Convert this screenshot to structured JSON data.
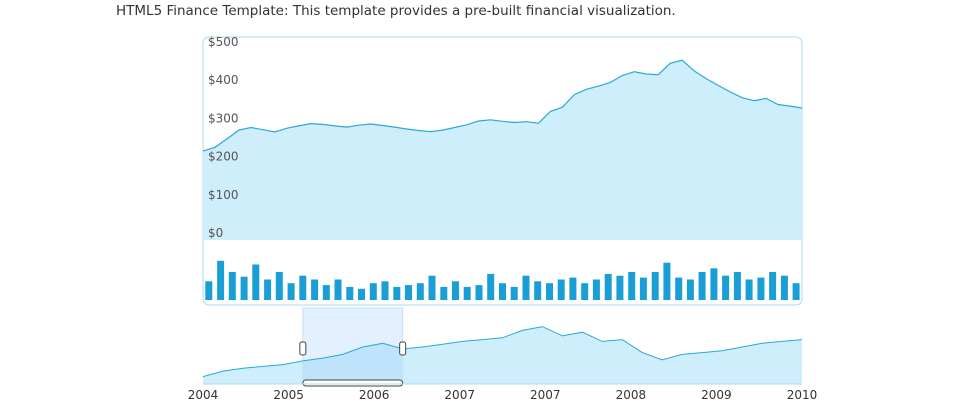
{
  "caption": "HTML5 Finance Template: This template provides a pre-built financial visualization.",
  "colors": {
    "line": "#29a9d8",
    "fill": "#cfeefb",
    "bar": "#1a9ed6",
    "border": "#a9dcef",
    "selection": "#e2f0ff",
    "selection_fill": "#bfe3fb"
  },
  "chart_data": [
    {
      "type": "area",
      "title": "",
      "xlabel": "",
      "ylabel": "",
      "ylim": [
        0,
        500
      ],
      "y_ticks": [
        "$500",
        "$400",
        "$300",
        "$200",
        "$100",
        "$0"
      ],
      "y_tick_values": [
        500,
        400,
        300,
        200,
        100,
        0
      ],
      "grid": false,
      "xlim": [
        2005.0,
        2006.0
      ],
      "note_x_unit": "year",
      "x": [
        2005.0,
        2005.02,
        2005.04,
        2005.06,
        2005.08,
        2005.1,
        2005.12,
        2005.14,
        2005.16,
        2005.18,
        2005.2,
        2005.22,
        2005.24,
        2005.26,
        2005.28,
        2005.3,
        2005.32,
        2005.34,
        2005.36,
        2005.38,
        2005.4,
        2005.42,
        2005.44,
        2005.46,
        2005.48,
        2005.5,
        2005.52,
        2005.54,
        2005.56,
        2005.58,
        2005.6,
        2005.62,
        2005.64,
        2005.66,
        2005.68,
        2005.7,
        2005.72,
        2005.74,
        2005.76,
        2005.78,
        2005.8,
        2005.82,
        2005.84,
        2005.86,
        2005.88,
        2005.9,
        2005.92,
        2005.94,
        2005.96,
        2005.98,
        2006.0
      ],
      "y": [
        230,
        240,
        262,
        285,
        292,
        286,
        280,
        290,
        296,
        302,
        300,
        296,
        293,
        298,
        301,
        297,
        293,
        288,
        284,
        281,
        285,
        292,
        299,
        309,
        312,
        308,
        305,
        307,
        303,
        334,
        345,
        378,
        392,
        400,
        410,
        428,
        438,
        432,
        430,
        460,
        468,
        440,
        420,
        402,
        385,
        370,
        362,
        368,
        352,
        348,
        343
      ]
    },
    {
      "type": "bar",
      "title": "",
      "note": "volume",
      "x": [
        2005.0,
        2005.02,
        2005.04,
        2005.06,
        2005.08,
        2005.1,
        2005.12,
        2005.14,
        2005.16,
        2005.18,
        2005.2,
        2005.22,
        2005.24,
        2005.26,
        2005.28,
        2005.3,
        2005.32,
        2005.34,
        2005.36,
        2005.38,
        2005.4,
        2005.42,
        2005.44,
        2005.46,
        2005.48,
        2005.5,
        2005.52,
        2005.54,
        2005.56,
        2005.58,
        2005.6,
        2005.62,
        2005.64,
        2005.66,
        2005.68,
        2005.7,
        2005.72,
        2005.74,
        2005.76,
        2005.78,
        2005.8,
        2005.82,
        2005.84,
        2005.86,
        2005.88,
        2005.9,
        2005.92,
        2005.94,
        2005.96,
        2005.98,
        2006.0
      ],
      "values": [
        20,
        42,
        30,
        25,
        38,
        22,
        30,
        18,
        26,
        22,
        16,
        22,
        14,
        12,
        18,
        20,
        14,
        16,
        18,
        26,
        14,
        20,
        14,
        16,
        28,
        18,
        14,
        26,
        20,
        18,
        22,
        24,
        18,
        22,
        28,
        26,
        30,
        24,
        30,
        40,
        24,
        22,
        30,
        34,
        26,
        30,
        22,
        24,
        30,
        26,
        18
      ],
      "ylim": [
        0,
        60
      ]
    },
    {
      "type": "area",
      "title": "",
      "note": "navigator",
      "x_ticks": [
        "2004",
        "2005",
        "2006",
        "2007",
        "2007",
        "2008",
        "2009",
        "2010"
      ],
      "x": [
        2004.0,
        2004.2,
        2004.4,
        2004.6,
        2004.8,
        2005.0,
        2005.2,
        2005.4,
        2005.6,
        2005.8,
        2006.0,
        2006.2,
        2006.4,
        2006.6,
        2006.8,
        2007.0,
        2007.2,
        2007.4,
        2007.6,
        2007.8,
        2008.0,
        2008.2,
        2008.4,
        2008.6,
        2008.8,
        2009.0,
        2009.2,
        2009.4,
        2009.6,
        2009.8,
        2010.0
      ],
      "y": [
        8,
        14,
        17,
        19,
        21,
        25,
        28,
        32,
        40,
        44,
        38,
        40,
        43,
        46,
        48,
        50,
        58,
        62,
        52,
        56,
        46,
        48,
        34,
        26,
        32,
        34,
        36,
        40,
        44,
        46,
        48
      ],
      "ylim": [
        0,
        80
      ],
      "selection": [
        2005.0,
        2006.0
      ]
    }
  ]
}
